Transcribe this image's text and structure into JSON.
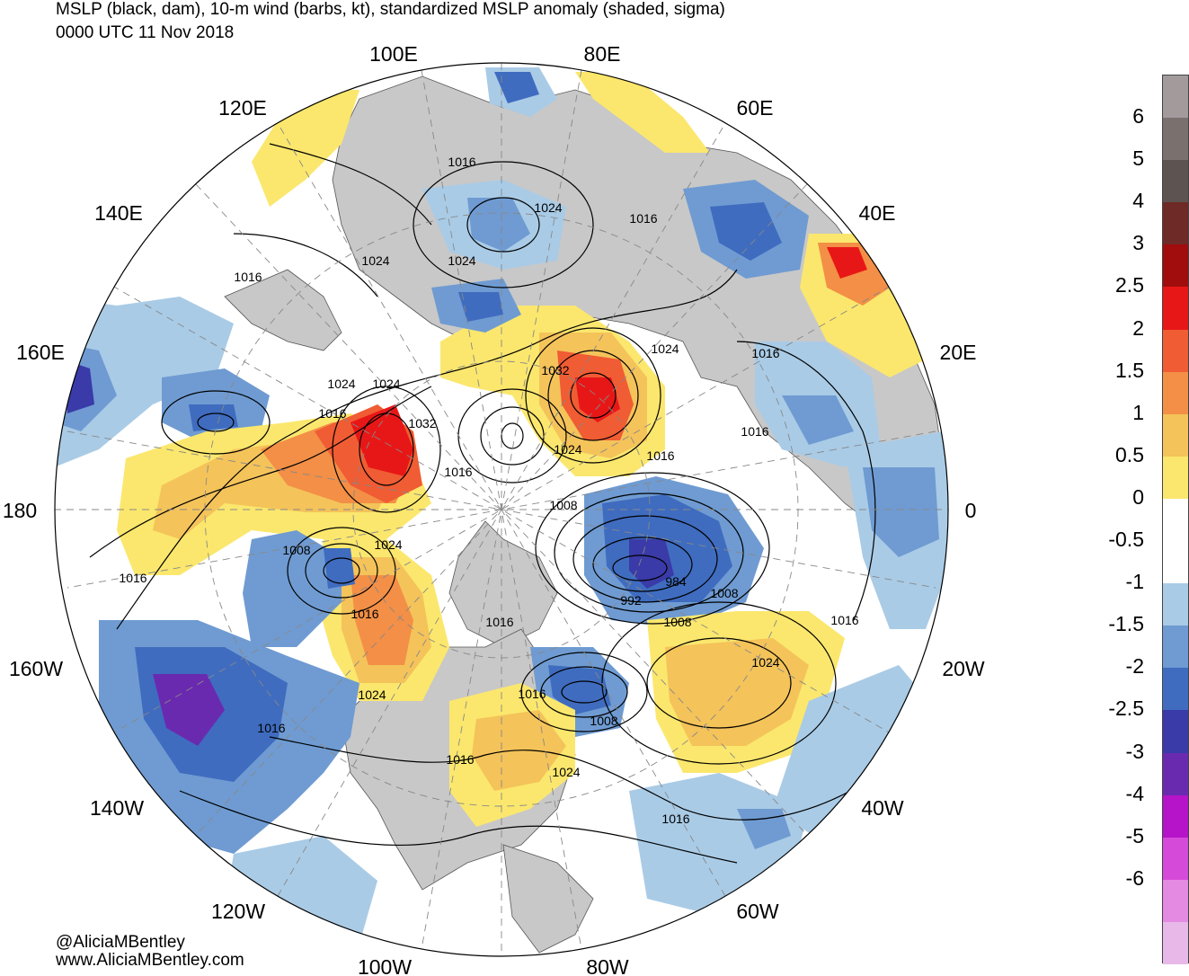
{
  "title": {
    "line1": "MSLP (black, dam), 10-m wind (barbs, kt), standardized MSLP anomaly (shaded, sigma)",
    "line2": "0000 UTC 11 Nov 2018"
  },
  "credits": {
    "twitter": "@AliciaMBentley",
    "web": "www.AliciaMBentley.com"
  },
  "longitude_labels": {
    "lon_100e": "100E",
    "lon_80e": "80E",
    "lon_120e": "120E",
    "lon_60e": "60E",
    "lon_140e": "140E",
    "lon_40e": "40E",
    "lon_160e": "160E",
    "lon_20e": "20E",
    "lon_180": "180",
    "lon_0": "0",
    "lon_160w": "160W",
    "lon_20w": "20W",
    "lon_140w": "140W",
    "lon_40w": "40W",
    "lon_120w": "120W",
    "lon_60w": "60W",
    "lon_100w": "100W",
    "lon_80w": "80W"
  },
  "isobar_labels": {
    "l1": "1016",
    "l2": "1024",
    "l3": "1016",
    "l4": "1024",
    "l5": "1024",
    "l6": "1016",
    "l7": "1016",
    "l8": "1032",
    "l9": "1024",
    "l10": "1024",
    "l11": "1016",
    "l12": "1016",
    "l13": "1032",
    "l14": "1016",
    "l15": "1024",
    "l16": "1016",
    "l17": "1008",
    "l18": "1008",
    "l19": "1024",
    "l20": "1016",
    "l21": "984",
    "l22": "992",
    "l23": "1008",
    "l24": "1008",
    "l25": "1016",
    "l26": "1016",
    "l27": "1024",
    "l28": "1016",
    "l29": "1016",
    "l30": "1008",
    "l31": "1024",
    "l32": "1016",
    "l33": "1024",
    "l34": "1016",
    "l35": "1016",
    "l36": "1024"
  },
  "colorbar": {
    "levels": [
      "6",
      "5",
      "4",
      "3",
      "2.5",
      "2",
      "1.5",
      "1",
      "0.5",
      "0",
      "-0.5",
      "-1",
      "-1.5",
      "-2",
      "-2.5",
      "-3",
      "-4",
      "-5",
      "-6"
    ],
    "colors": [
      "#a39b9b",
      "#7a716f",
      "#5d5350",
      "#6e2a26",
      "#a10c0c",
      "#e81717",
      "#f05c33",
      "#f38f46",
      "#f4c35a",
      "#fbe76d",
      "#ffffff",
      "#ffffff",
      "#a9cbe6",
      "#6f9bd2",
      "#3f6cbf",
      "#3a3aa8",
      "#6a2ab0",
      "#b514c8",
      "#d64ad9",
      "#e48ae2",
      "#e8b9e8"
    ]
  },
  "map_colors": {
    "land": "#c8c8c8",
    "ocean": "#ffffff",
    "isobar": "#000000",
    "graticule": "#888888"
  }
}
